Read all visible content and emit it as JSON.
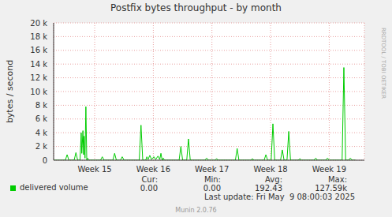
{
  "chart_data": {
    "type": "line",
    "title": "Postfix bytes throughput - by month",
    "y_label": "bytes / second",
    "x": [
      14.3,
      14.5,
      14.53,
      14.56,
      14.65,
      14.68,
      14.71,
      14.75,
      14.77,
      14.78,
      14.8,
      14.81,
      14.82,
      14.835,
      14.85,
      14.865,
      14.88,
      14.9,
      15.1,
      15.13,
      15.16,
      15.31,
      15.34,
      15.37,
      15.44,
      15.47,
      15.5,
      15.76,
      15.79,
      15.82,
      15.87,
      15.89,
      15.91,
      15.94,
      15.97,
      16.01,
      16.04,
      16.08,
      16.11,
      16.13,
      16.15,
      16.17,
      16.19,
      16.44,
      16.47,
      16.5,
      16.57,
      16.6,
      16.63,
      16.88,
      16.91,
      16.94,
      17.05,
      17.08,
      17.11,
      17.4,
      17.43,
      17.46,
      17.66,
      17.69,
      17.72,
      17.89,
      17.92,
      17.95,
      18.01,
      18.04,
      18.07,
      18.17,
      18.2,
      18.23,
      18.28,
      18.31,
      18.34,
      18.47,
      18.5,
      18.53,
      18.74,
      18.77,
      18.8,
      18.94,
      18.97,
      19.0,
      19.22,
      19.25,
      19.28,
      19.33,
      19.36,
      19.39,
      19.45
    ],
    "series": [
      {
        "name": "delivered volume",
        "color": "#00cc00",
        "values": [
          0,
          0,
          800,
          0,
          0,
          1100,
          0,
          0,
          4000,
          1000,
          4300,
          800,
          3500,
          300,
          7800,
          0,
          300,
          0,
          0,
          500,
          0,
          0,
          1000,
          0,
          0,
          500,
          0,
          0,
          5100,
          0,
          0,
          500,
          100,
          700,
          100,
          500,
          100,
          600,
          100,
          1000,
          0,
          300,
          0,
          0,
          2000,
          0,
          0,
          3100,
          0,
          0,
          300,
          0,
          0,
          200,
          0,
          0,
          1700,
          0,
          0,
          200,
          0,
          0,
          800,
          0,
          0,
          5300,
          0,
          0,
          1500,
          0,
          0,
          4200,
          0,
          0,
          200,
          0,
          0,
          300,
          0,
          0,
          300,
          0,
          0,
          13500,
          0,
          0,
          300,
          0,
          0
        ],
        "stats": [
          {
            "label": "Cur:",
            "value": "0.00"
          },
          {
            "label": "Min:",
            "value": "0.00"
          },
          {
            "label": "Avg:",
            "value": "192.43"
          },
          {
            "label": "Max:",
            "value": "127.59k"
          }
        ]
      }
    ],
    "xlim": [
      14.3,
      19.6
    ],
    "xticks": [
      {
        "value": 15,
        "label": "Week 15"
      },
      {
        "value": 16,
        "label": "Week 16"
      },
      {
        "value": 17,
        "label": "Week 17"
      },
      {
        "value": 18,
        "label": "Week 18"
      },
      {
        "value": 19,
        "label": "Week 19"
      }
    ],
    "ylim": [
      0,
      20000
    ],
    "yticks": [
      0,
      {
        "value": 2000,
        "label": "2 k"
      },
      {
        "value": 4000,
        "label": "4 k"
      },
      {
        "value": 6000,
        "label": "6 k"
      },
      {
        "value": 8000,
        "label": "8 k"
      },
      {
        "value": 10000,
        "label": "10 k"
      },
      {
        "value": 12000,
        "label": "12 k"
      },
      {
        "value": 14000,
        "label": "14 k"
      },
      {
        "value": 16000,
        "label": "16 k"
      },
      {
        "value": 18000,
        "label": "18 k"
      },
      {
        "value": 20000,
        "label": "20 k"
      }
    ],
    "grid": true,
    "last_update": "Last update: Fri May  9 08:00:03 2025",
    "footer": "Munin 2.0.76",
    "side_text": "RRDTOOL / TOBI OETIKER"
  }
}
